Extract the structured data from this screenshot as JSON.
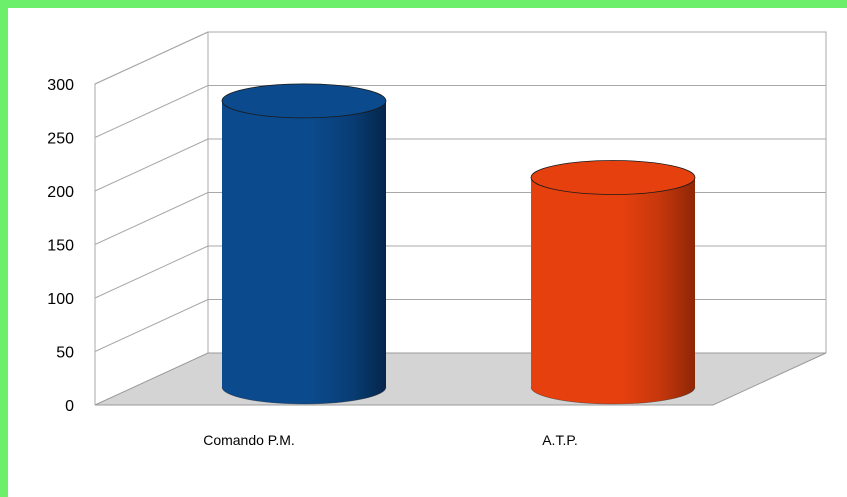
{
  "chart_data": {
    "type": "bar",
    "style": "3d-cylinder",
    "categories": [
      "Comando P.M.",
      "A.T.P."
    ],
    "values": [
      280,
      205
    ],
    "colors": [
      "#0b4a8c",
      "#e6400f"
    ],
    "ylim": [
      0,
      300
    ],
    "yticks": [
      0,
      50,
      100,
      150,
      200,
      250,
      300
    ],
    "grid": true,
    "legend": "none"
  }
}
